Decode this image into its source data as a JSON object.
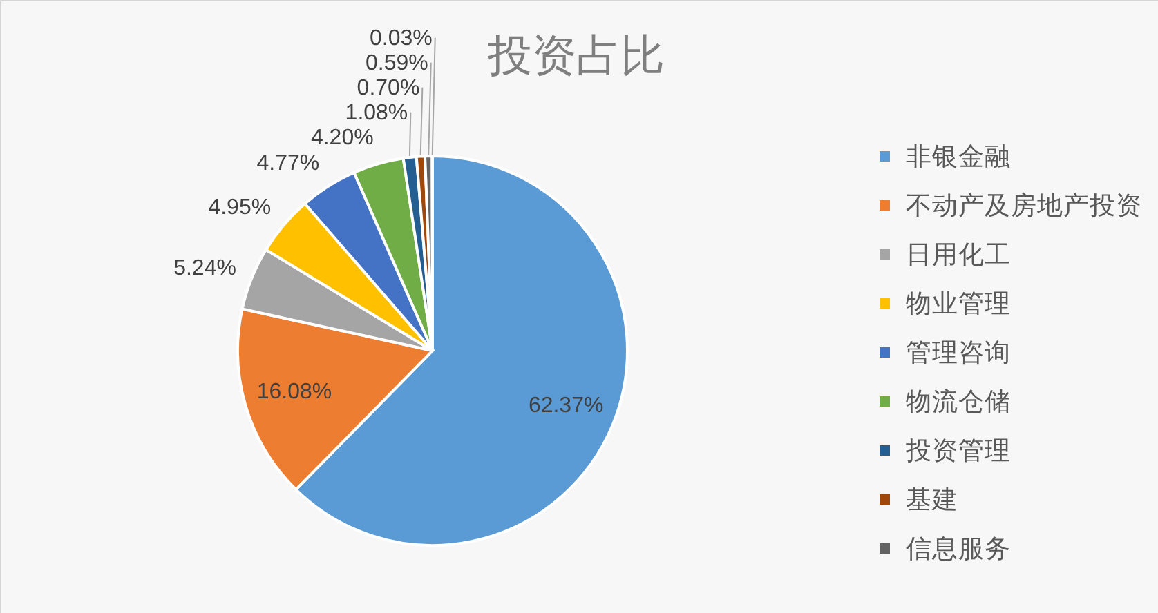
{
  "chart_data": {
    "type": "pie",
    "title": "投资占比",
    "categories": [
      "非银金融",
      "不动产及房地产投资",
      "日用化工",
      "物业管理",
      "管理咨询",
      "物流仓储",
      "投资管理",
      "基建",
      "信息服务",
      null
    ],
    "values": [
      62.37,
      16.08,
      5.24,
      4.95,
      4.77,
      4.2,
      1.08,
      0.7,
      0.59,
      0.03
    ],
    "colors": [
      "#5b9bd5",
      "#ed7d31",
      "#a5a5a5",
      "#ffc000",
      "#4472c4",
      "#70ad47",
      "#255e91",
      "#9e480e",
      "#636363",
      "#997300"
    ],
    "value_labels": [
      "62.37%",
      "16.08%",
      "5.24%",
      "4.95%",
      "4.77%",
      "4.20%",
      "1.08%",
      "0.70%",
      "0.59%",
      "0.03%"
    ],
    "legend": "right"
  }
}
